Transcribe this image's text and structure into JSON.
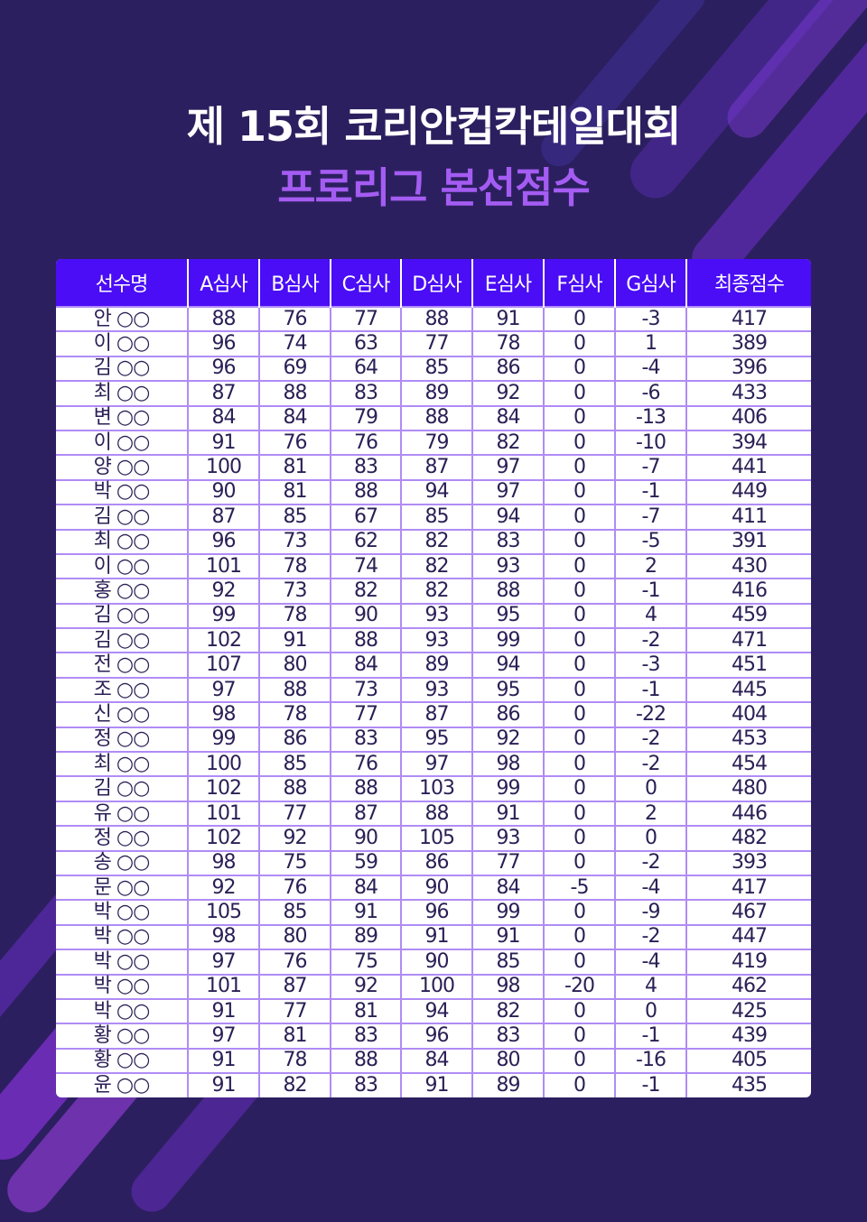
{
  "title": "제 15회 코리안컵칵테일대회",
  "subtitle": "프로리그 본선점수",
  "colors": {
    "background": "#2c1f5f",
    "header": "#4a0df5",
    "subtitle": "#a45cf2",
    "grid": "#b08cf6"
  },
  "headers": [
    "선수명",
    "A심사",
    "B심사",
    "C심사",
    "D심사",
    "E심사",
    "F심사",
    "G심사",
    "최종점수"
  ],
  "rows": [
    [
      "안 ○○",
      88,
      76,
      77,
      88,
      91,
      0,
      -3,
      417
    ],
    [
      "이 ○○",
      96,
      74,
      63,
      77,
      78,
      0,
      1,
      389
    ],
    [
      "김 ○○",
      96,
      69,
      64,
      85,
      86,
      0,
      -4,
      396
    ],
    [
      "최 ○○",
      87,
      88,
      83,
      89,
      92,
      0,
      -6,
      433
    ],
    [
      "변 ○○",
      84,
      84,
      79,
      88,
      84,
      0,
      -13,
      406
    ],
    [
      "이 ○○",
      91,
      76,
      76,
      79,
      82,
      0,
      -10,
      394
    ],
    [
      "양 ○○",
      100,
      81,
      83,
      87,
      97,
      0,
      -7,
      441
    ],
    [
      "박 ○○",
      90,
      81,
      88,
      94,
      97,
      0,
      -1,
      449
    ],
    [
      "김 ○○",
      87,
      85,
      67,
      85,
      94,
      0,
      -7,
      411
    ],
    [
      "최 ○○",
      96,
      73,
      62,
      82,
      83,
      0,
      -5,
      391
    ],
    [
      "이 ○○",
      101,
      78,
      74,
      82,
      93,
      0,
      2,
      430
    ],
    [
      "홍 ○○",
      92,
      73,
      82,
      82,
      88,
      0,
      -1,
      416
    ],
    [
      "김 ○○",
      99,
      78,
      90,
      93,
      95,
      0,
      4,
      459
    ],
    [
      "김 ○○",
      102,
      91,
      88,
      93,
      99,
      0,
      -2,
      471
    ],
    [
      "전 ○○",
      107,
      80,
      84,
      89,
      94,
      0,
      -3,
      451
    ],
    [
      "조 ○○",
      97,
      88,
      73,
      93,
      95,
      0,
      -1,
      445
    ],
    [
      "신 ○○",
      98,
      78,
      77,
      87,
      86,
      0,
      -22,
      404
    ],
    [
      "정 ○○",
      99,
      86,
      83,
      95,
      92,
      0,
      -2,
      453
    ],
    [
      "최 ○○",
      100,
      85,
      76,
      97,
      98,
      0,
      -2,
      454
    ],
    [
      "김 ○○",
      102,
      88,
      88,
      103,
      99,
      0,
      0,
      480
    ],
    [
      "유 ○○",
      101,
      77,
      87,
      88,
      91,
      0,
      2,
      446
    ],
    [
      "정 ○○",
      102,
      92,
      90,
      105,
      93,
      0,
      0,
      482
    ],
    [
      "송 ○○",
      98,
      75,
      59,
      86,
      77,
      0,
      -2,
      393
    ],
    [
      "문 ○○",
      92,
      76,
      84,
      90,
      84,
      -5,
      -4,
      417
    ],
    [
      "박 ○○",
      105,
      85,
      91,
      96,
      99,
      0,
      -9,
      467
    ],
    [
      "박 ○○",
      98,
      80,
      89,
      91,
      91,
      0,
      -2,
      447
    ],
    [
      "박 ○○",
      97,
      76,
      75,
      90,
      85,
      0,
      -4,
      419
    ],
    [
      "박 ○○",
      101,
      87,
      92,
      100,
      98,
      -20,
      4,
      462
    ],
    [
      "박 ○○",
      91,
      77,
      81,
      94,
      82,
      0,
      0,
      425
    ],
    [
      "황 ○○",
      97,
      81,
      83,
      96,
      83,
      0,
      -1,
      439
    ],
    [
      "황 ○○",
      91,
      78,
      88,
      84,
      80,
      0,
      -16,
      405
    ],
    [
      "윤 ○○",
      91,
      82,
      83,
      91,
      89,
      0,
      -1,
      435
    ]
  ]
}
